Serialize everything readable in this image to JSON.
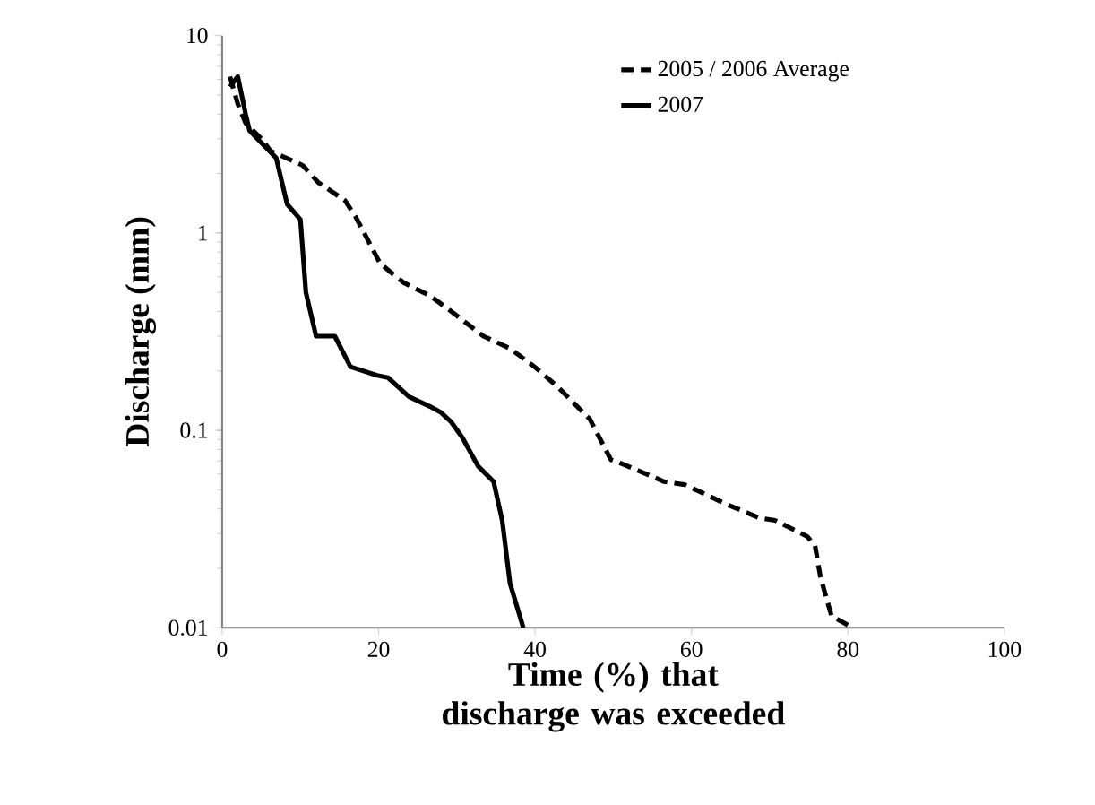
{
  "chart_data": {
    "type": "line",
    "xlabel": "Time (%) that discharge was exceeded",
    "ylabel": "Discharge (mm)",
    "log": "y",
    "grid": false,
    "legend": "top right",
    "marker": "none",
    "xlim": [
      0,
      100
    ],
    "ylim": [
      0.01,
      10
    ],
    "xticks": [
      0,
      20,
      40,
      60,
      80,
      100
    ],
    "yticks": [
      0.01,
      0.1,
      1,
      10
    ],
    "series": [
      {
        "name": "2005 / 2006 Average",
        "color": "#000000",
        "line_style": "dashed",
        "x": [
          1,
          2,
          3,
          5,
          6.2,
          10.3,
          12.3,
          15.7,
          17.1,
          20.2,
          23.2,
          26.6,
          28.6,
          33.4,
          36.8,
          40.2,
          42.9,
          47,
          49.7,
          51,
          56.5,
          59.2,
          64.6,
          68.7,
          70.7,
          74.8,
          75.8,
          76.5,
          77.9,
          80.6
        ],
        "values": [
          6.2,
          4.5,
          3.6,
          3.0,
          2.6,
          2.2,
          1.8,
          1.46,
          1.2,
          0.7,
          0.56,
          0.48,
          0.42,
          0.3,
          0.26,
          0.206,
          0.166,
          0.114,
          0.071,
          0.068,
          0.055,
          0.053,
          0.042,
          0.036,
          0.035,
          0.029,
          0.026,
          0.018,
          0.0115,
          0.01
        ]
      },
      {
        "name": "2007",
        "color": "#000000",
        "line_style": "solid",
        "x": [
          1,
          2,
          3,
          3.5,
          6.9,
          8.3,
          10,
          10.7,
          12,
          14.4,
          16.4,
          19.8,
          21.2,
          23.9,
          26.6,
          28,
          29.3,
          30.7,
          32.7,
          34.7,
          35.8,
          36.8,
          38.5
        ],
        "values": [
          5.5,
          6.2,
          4,
          3.3,
          2.4,
          1.4,
          1.17,
          0.5,
          0.3,
          0.3,
          0.21,
          0.19,
          0.185,
          0.148,
          0.132,
          0.123,
          0.11,
          0.092,
          0.066,
          0.055,
          0.035,
          0.0168,
          0.01
        ]
      }
    ]
  }
}
